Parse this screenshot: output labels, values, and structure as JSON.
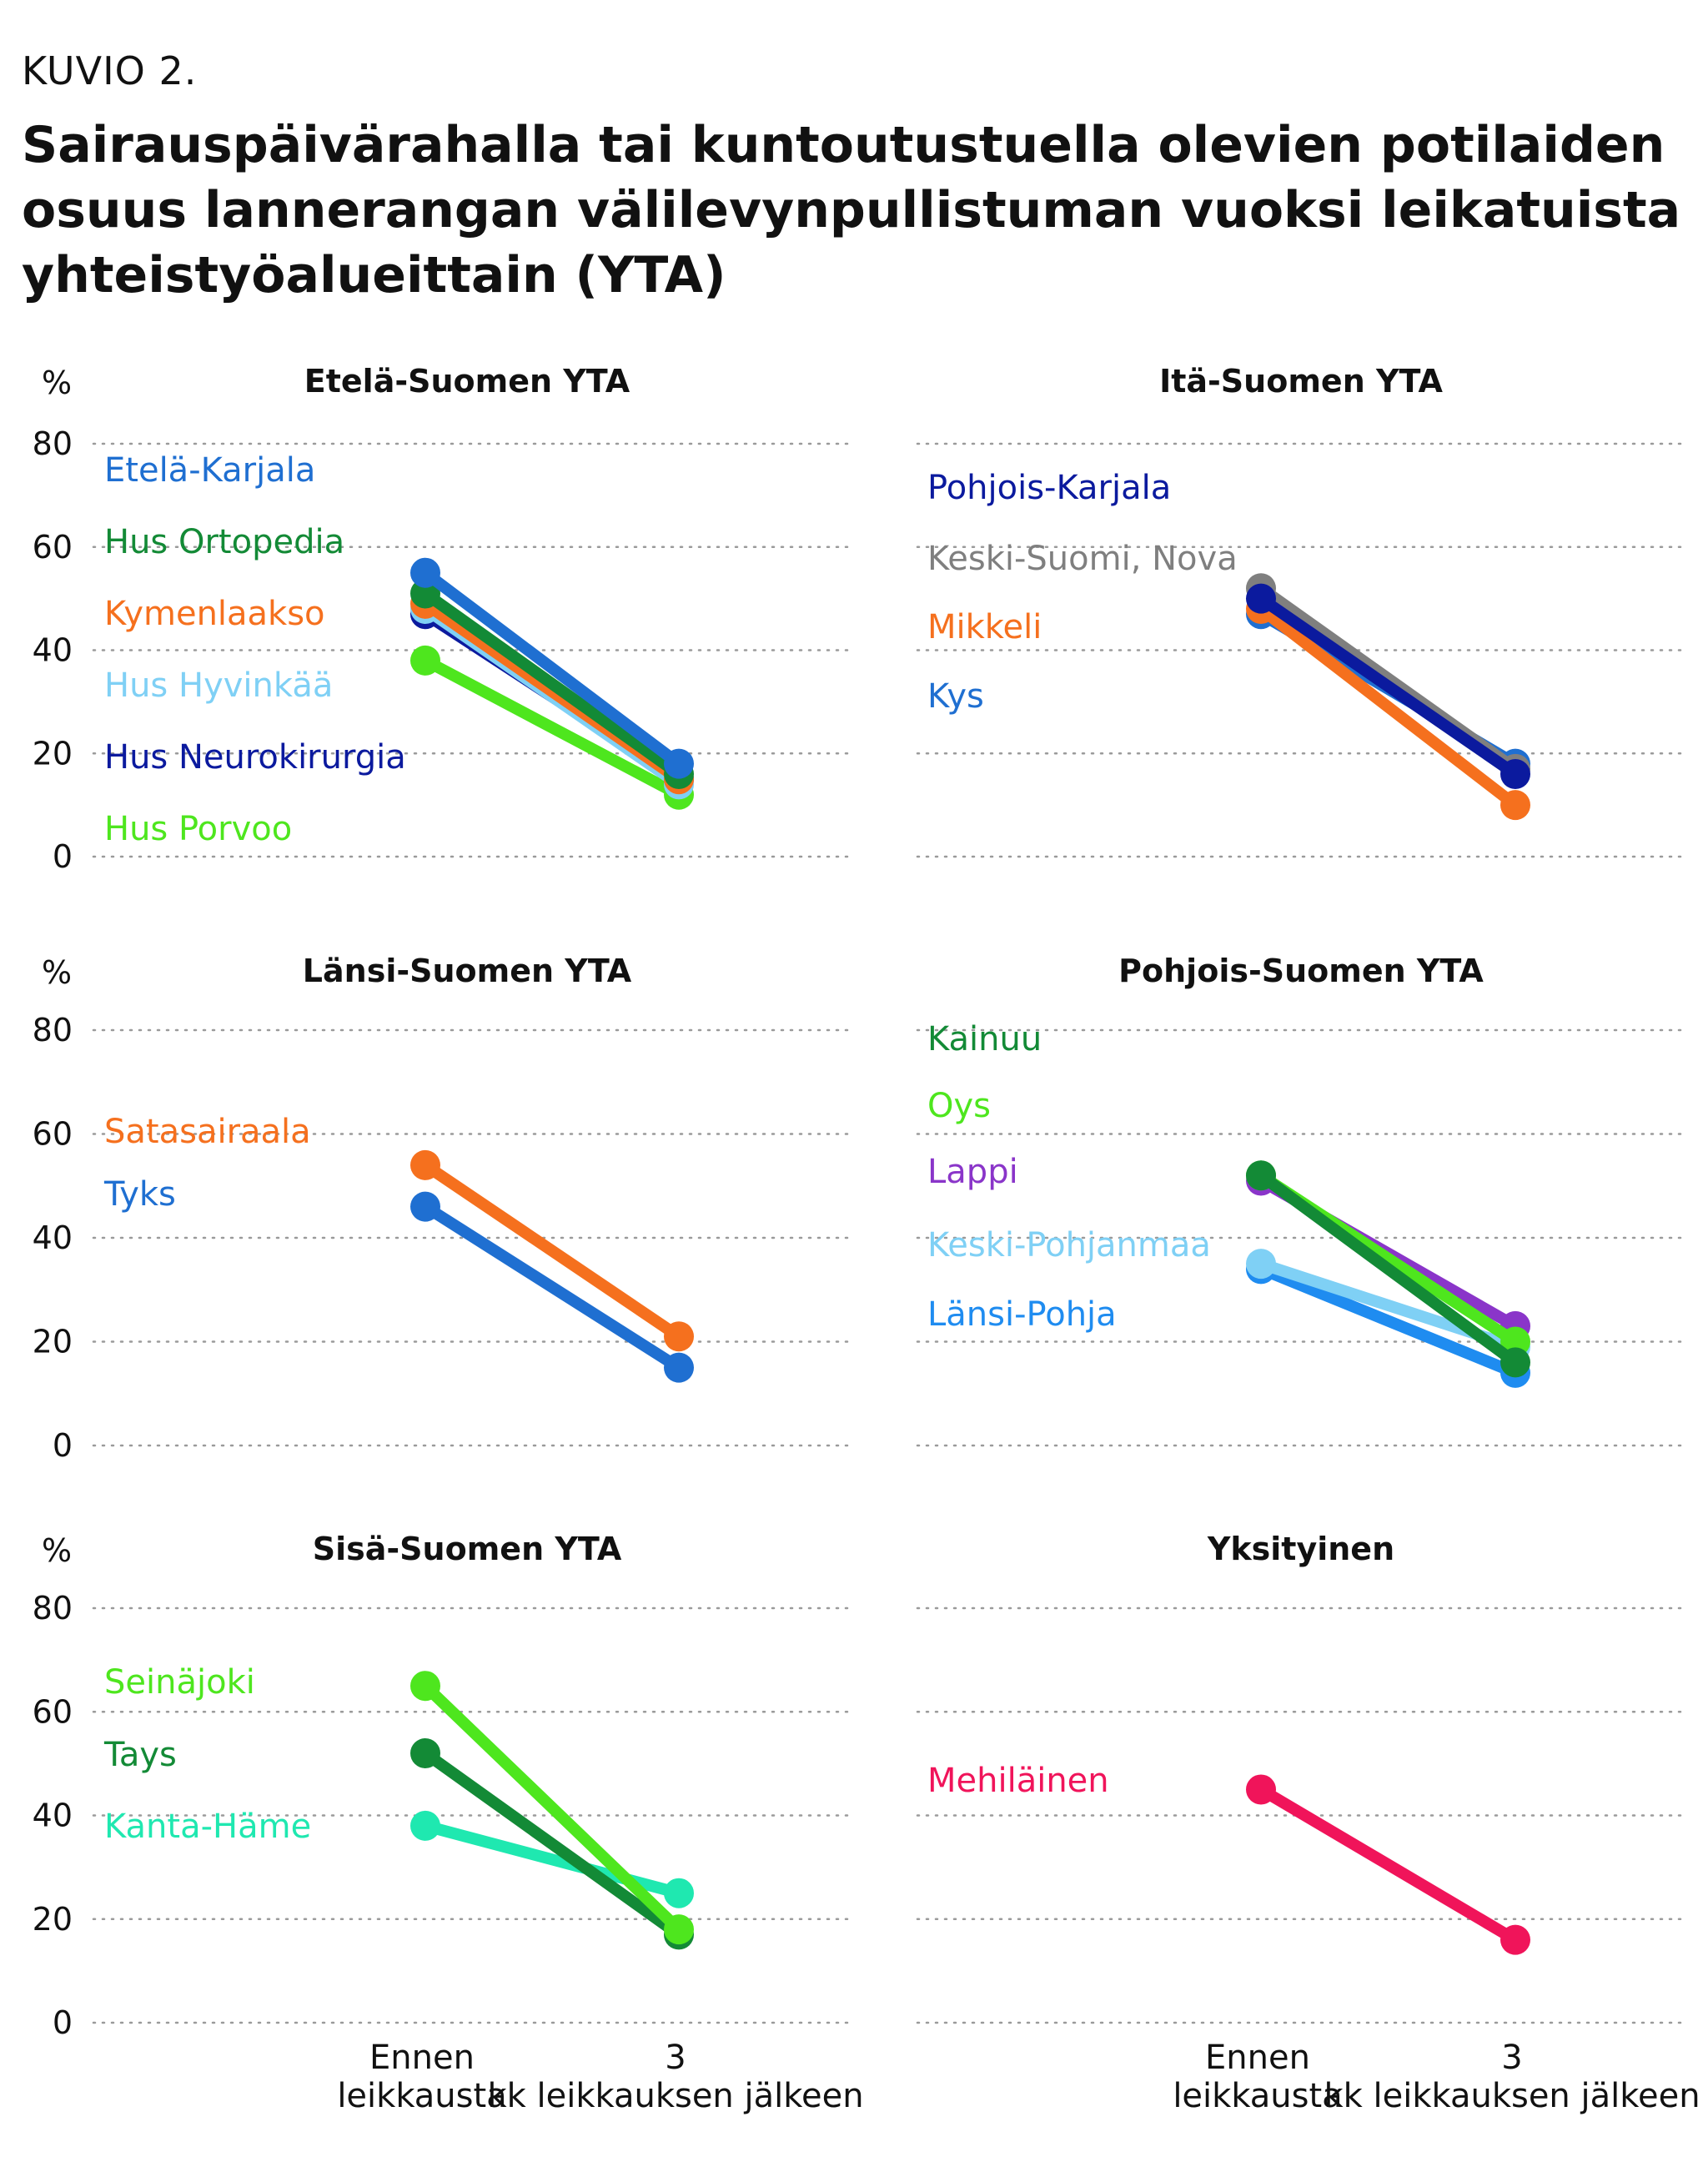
{
  "figure": {
    "label": "KUVIO 2.",
    "title_lines": [
      "Sairauspäivärahalla tai kuntoutustuella olevien potilaiden",
      "osuus lannerangan välilevynpullistuman vuoksi leikatuista",
      "yhteistyöalueittain (YTA)"
    ],
    "unit": "%"
  },
  "chart_data": [
    {
      "type": "line",
      "title": "Etelä-Suomen YTA",
      "categories": [
        "Ennen leikkausta",
        "3 kk leikkauksen jälkeen"
      ],
      "ylim": [
        0,
        80
      ],
      "yticks": [
        0,
        20,
        40,
        60,
        80
      ],
      "ylabel": "%",
      "grid": true,
      "series": [
        {
          "name": "Etelä-Karjala",
          "values": [
            55,
            18
          ],
          "color": "#1f6fd1"
        },
        {
          "name": "Hus Ortopedia",
          "values": [
            51,
            16
          ],
          "color": "#138a36"
        },
        {
          "name": "Kymenlaakso",
          "values": [
            49,
            15
          ],
          "color": "#f5701e"
        },
        {
          "name": "Hus Hyvinkää",
          "values": [
            48,
            14
          ],
          "color": "#7fd0f5"
        },
        {
          "name": "Hus Neurokirurgia",
          "values": [
            47,
            15
          ],
          "color": "#0b1a9e"
        },
        {
          "name": "Hus Porvoo",
          "values": [
            38,
            12
          ],
          "color": "#4ee61e"
        }
      ]
    },
    {
      "type": "line",
      "title": "Itä-Suomen YTA",
      "categories": [
        "Ennen leikkausta",
        "3 kk leikkauksen jälkeen"
      ],
      "ylim": [
        0,
        80
      ],
      "yticks": [
        0,
        20,
        40,
        60,
        80
      ],
      "grid": true,
      "series": [
        {
          "name": "Pohjois-Karjala",
          "values": [
            50,
            16
          ],
          "color": "#0b1a9e"
        },
        {
          "name": "Keski-Suomi, Nova",
          "values": [
            52,
            17
          ],
          "color": "#7f7f7f"
        },
        {
          "name": "Mikkeli",
          "values": [
            48,
            10
          ],
          "color": "#f5701e"
        },
        {
          "name": "Kys",
          "values": [
            47,
            18
          ],
          "color": "#1f6fd1"
        }
      ]
    },
    {
      "type": "line",
      "title": "Länsi-Suomen YTA",
      "categories": [
        "Ennen leikkausta",
        "3 kk leikkauksen jälkeen"
      ],
      "ylim": [
        0,
        80
      ],
      "yticks": [
        0,
        20,
        40,
        60,
        80
      ],
      "ylabel": "%",
      "grid": true,
      "series": [
        {
          "name": "Satasairaala",
          "values": [
            54,
            21
          ],
          "color": "#f5701e"
        },
        {
          "name": "Tyks",
          "values": [
            46,
            15
          ],
          "color": "#1f6fd1"
        }
      ]
    },
    {
      "type": "line",
      "title": "Pohjois-Suomen YTA",
      "categories": [
        "Ennen leikkausta",
        "3 kk leikkauksen jälkeen"
      ],
      "ylim": [
        0,
        80
      ],
      "yticks": [
        0,
        20,
        40,
        60,
        80
      ],
      "grid": true,
      "series": [
        {
          "name": "Kainuu",
          "values": [
            52,
            16
          ],
          "color": "#138a36"
        },
        {
          "name": "Oys",
          "values": [
            52,
            20
          ],
          "color": "#4ee61e"
        },
        {
          "name": "Lappi",
          "values": [
            51,
            23
          ],
          "color": "#8a35c9"
        },
        {
          "name": "Keski-Pohjanmaa",
          "values": [
            35,
            19
          ],
          "color": "#7fd0f5"
        },
        {
          "name": "Länsi-Pohja",
          "values": [
            34,
            14
          ],
          "color": "#1f8cf0"
        }
      ]
    },
    {
      "type": "line",
      "title": "Sisä-Suomen YTA",
      "categories": [
        "Ennen leikkausta",
        "3 kk leikkauksen jälkeen"
      ],
      "ylim": [
        0,
        80
      ],
      "yticks": [
        0,
        20,
        40,
        60,
        80
      ],
      "ylabel": "%",
      "grid": true,
      "series": [
        {
          "name": "Seinäjoki",
          "values": [
            65,
            18
          ],
          "color": "#4ee61e"
        },
        {
          "name": "Tays",
          "values": [
            52,
            17
          ],
          "color": "#138a36"
        },
        {
          "name": "Kanta-Häme",
          "values": [
            38,
            25
          ],
          "color": "#1fe8b0"
        }
      ]
    },
    {
      "type": "line",
      "title": "Yksityinen",
      "categories": [
        "Ennen leikkausta",
        "3 kk leikkauksen jälkeen"
      ],
      "ylim": [
        0,
        80
      ],
      "yticks": [
        0,
        20,
        40,
        60,
        80
      ],
      "grid": true,
      "series": [
        {
          "name": "Mehiläinen",
          "values": [
            45,
            16
          ],
          "color": "#f0145a"
        }
      ]
    }
  ]
}
